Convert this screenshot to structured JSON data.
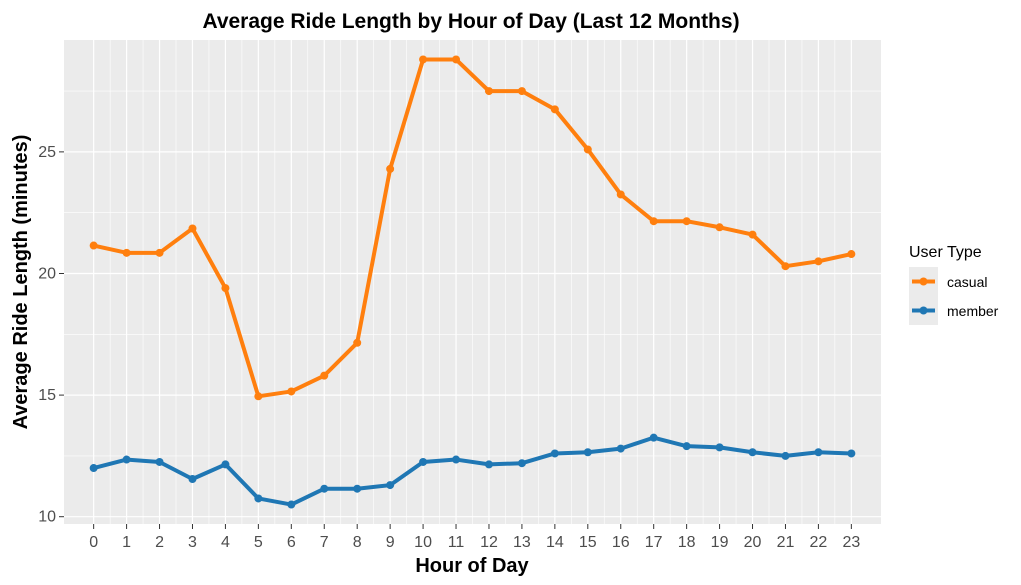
{
  "chart_data": {
    "type": "line",
    "title": "Average Ride Length by Hour of Day (Last 12 Months)",
    "xlabel": "Hour of Day",
    "ylabel": "Average Ride Length (minutes)",
    "x": [
      0,
      1,
      2,
      3,
      4,
      5,
      6,
      7,
      8,
      9,
      10,
      11,
      12,
      13,
      14,
      15,
      16,
      17,
      18,
      19,
      20,
      21,
      22,
      23
    ],
    "x_tick_labels": [
      "0",
      "1",
      "2",
      "3",
      "4",
      "5",
      "6",
      "7",
      "8",
      "9",
      "10",
      "11",
      "12",
      "13",
      "14",
      "15",
      "16",
      "17",
      "18",
      "19",
      "20",
      "21",
      "22",
      "23"
    ],
    "xlim": [
      -0.9,
      23.9
    ],
    "ylim": [
      9.7,
      29.6
    ],
    "y_ticks": [
      10,
      15,
      20,
      25
    ],
    "y_tick_labels": [
      "10",
      "15",
      "20",
      "25"
    ],
    "grid": true,
    "legend": {
      "title": "User Type",
      "position": "right"
    },
    "series": [
      {
        "name": "casual",
        "color": "#ff7f0e",
        "values": [
          21.15,
          20.85,
          20.85,
          21.85,
          19.4,
          14.95,
          15.15,
          15.8,
          17.15,
          24.3,
          28.8,
          28.8,
          27.5,
          27.5,
          26.75,
          25.1,
          23.25,
          22.15,
          22.15,
          21.9,
          21.6,
          20.3,
          20.5,
          20.8
        ]
      },
      {
        "name": "member",
        "color": "#1f77b4",
        "values": [
          12.0,
          12.35,
          12.25,
          11.55,
          12.15,
          10.75,
          10.5,
          11.15,
          11.15,
          11.3,
          12.25,
          12.35,
          12.15,
          12.2,
          12.6,
          12.65,
          12.8,
          13.25,
          12.9,
          12.85,
          12.65,
          12.5,
          12.65,
          12.6
        ]
      }
    ]
  }
}
